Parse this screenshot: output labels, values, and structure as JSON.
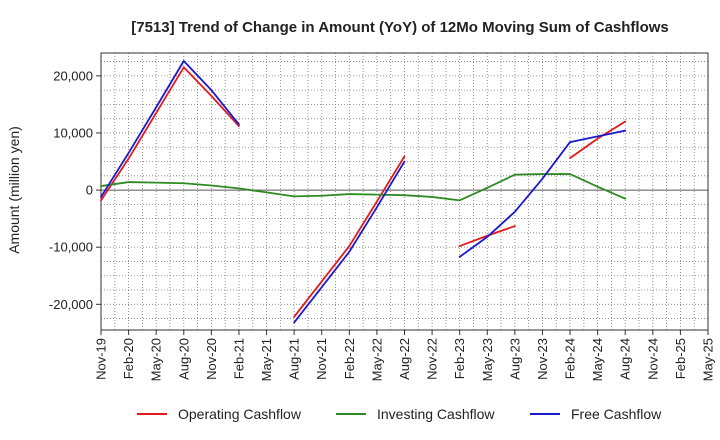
{
  "chart_data": {
    "type": "line",
    "title": "[7513]  Trend of Change in Amount (YoY) of 12Mo Moving Sum of Cashflows",
    "xlabel": "",
    "ylabel": "Amount (million yen)",
    "ylim": [
      -24500,
      24000
    ],
    "yticks": [
      -20000,
      -10000,
      0,
      10000,
      20000
    ],
    "ytick_labels": [
      "-20,000",
      "-10,000",
      "0",
      "10,000",
      "20,000"
    ],
    "categories": [
      "Nov-19",
      "Feb-20",
      "May-20",
      "Aug-20",
      "Nov-20",
      "Feb-21",
      "May-21",
      "Aug-21",
      "Nov-21",
      "Feb-22",
      "May-22",
      "Aug-22",
      "Nov-22",
      "Feb-23",
      "May-23",
      "Aug-23",
      "Nov-23",
      "Feb-24",
      "May-24",
      "Aug-24",
      "Nov-24",
      "Feb-25",
      "May-25"
    ],
    "grid": true,
    "legend_position": "bottom",
    "series": [
      {
        "name": "Operating Cashflow",
        "color": "#e31a1c",
        "values": [
          -1800,
          5500,
          13500,
          21500,
          16500,
          11200,
          null,
          -22200,
          -16000,
          -9800,
          -2000,
          5900,
          null,
          -9800,
          -8000,
          -6300,
          null,
          5600,
          9000,
          12000,
          null,
          null,
          null
        ]
      },
      {
        "name": "Investing Cashflow",
        "color": "#2e8b22",
        "values": [
          700,
          1400,
          1300,
          1200,
          800,
          300,
          -400,
          -1100,
          -1000,
          -700,
          -800,
          -900,
          -1200,
          -1800,
          400,
          2700,
          2800,
          2800,
          600,
          -1500,
          null,
          null,
          null
        ]
      },
      {
        "name": "Free Cashflow",
        "color": "#1a1acd",
        "values": [
          -1200,
          6500,
          14500,
          22600,
          17500,
          11500,
          null,
          -23200,
          -17000,
          -10800,
          -3000,
          5000,
          null,
          -11700,
          -8200,
          -3800,
          2000,
          8400,
          9400,
          10400,
          null,
          null,
          null
        ]
      }
    ]
  }
}
